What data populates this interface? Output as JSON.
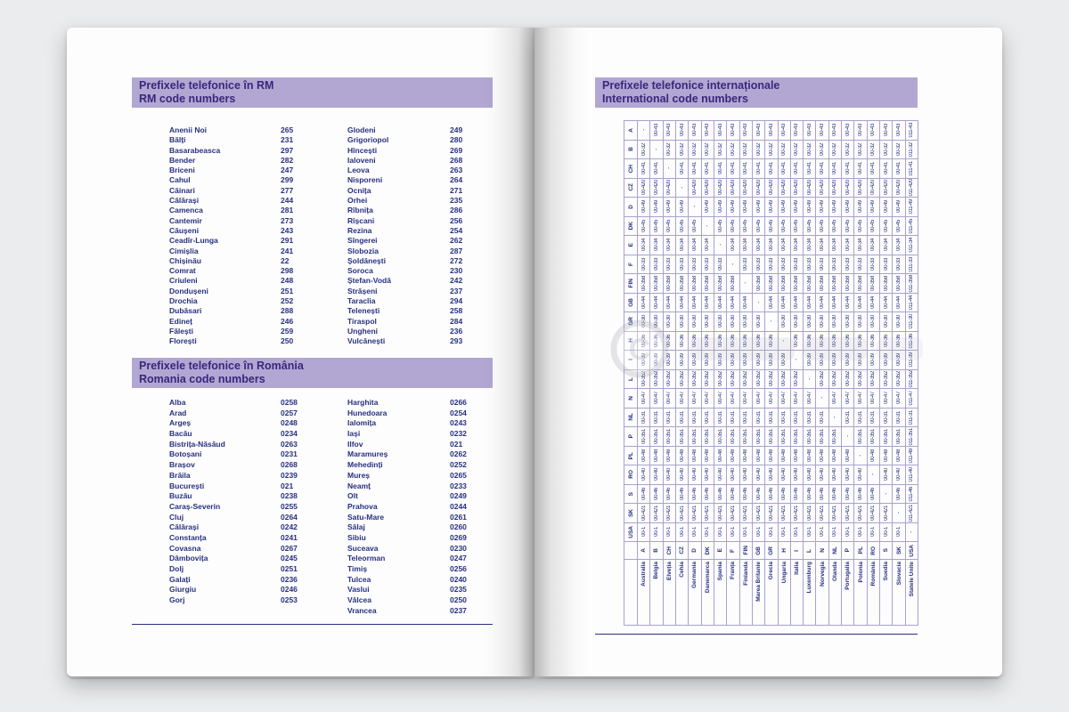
{
  "left_page": {
    "banner_rm": {
      "line1": "Prefixele telefonice în RM",
      "line2": "RM code numbers"
    },
    "rm_codes": {
      "col1": [
        [
          "Anenii Noi",
          "265"
        ],
        [
          "Bălți",
          "231"
        ],
        [
          "Basarabeasca",
          "297"
        ],
        [
          "Bender",
          "282"
        ],
        [
          "Briceni",
          "247"
        ],
        [
          "Cahul",
          "299"
        ],
        [
          "Căinari",
          "277"
        ],
        [
          "Călărași",
          "244"
        ],
        [
          "Camenca",
          "281"
        ],
        [
          "Cantemir",
          "273"
        ],
        [
          "Căușeni",
          "243"
        ],
        [
          "Ceadîr-Lunga",
          "291"
        ],
        [
          "Cimișlia",
          "241"
        ],
        [
          "Chișinău",
          "22"
        ],
        [
          "Comrat",
          "298"
        ],
        [
          "Criuleni",
          "248"
        ],
        [
          "Dondușeni",
          "251"
        ],
        [
          "Drochia",
          "252"
        ],
        [
          "Dubăsari",
          "288"
        ],
        [
          "Edineț",
          "246"
        ],
        [
          "Fălești",
          "259"
        ],
        [
          "Florești",
          "250"
        ]
      ],
      "col2": [
        [
          "Glodeni",
          "249"
        ],
        [
          "Grigoriopol",
          "280"
        ],
        [
          "Hîncești",
          "269"
        ],
        [
          "Ialoveni",
          "268"
        ],
        [
          "Leova",
          "263"
        ],
        [
          "Nisporeni",
          "264"
        ],
        [
          "Ocnița",
          "271"
        ],
        [
          "Orhei",
          "235"
        ],
        [
          "Rîbnița",
          "286"
        ],
        [
          "Rîșcani",
          "256"
        ],
        [
          "Rezina",
          "254"
        ],
        [
          "Sîngerei",
          "262"
        ],
        [
          "Slobozia",
          "287"
        ],
        [
          "Șoldănești",
          "272"
        ],
        [
          "Soroca",
          "230"
        ],
        [
          "Ștefan-Vodă",
          "242"
        ],
        [
          "Strășeni",
          "237"
        ],
        [
          "Taraclia",
          "294"
        ],
        [
          "Telenești",
          "258"
        ],
        [
          "Tiraspol",
          "284"
        ],
        [
          "Ungheni",
          "236"
        ],
        [
          "Vulcănești",
          "293"
        ]
      ]
    },
    "banner_ro": {
      "line1": "Prefixele telefonice în România",
      "line2": "Romania code numbers"
    },
    "ro_codes": {
      "col1": [
        [
          "Alba",
          "0258"
        ],
        [
          "Arad",
          "0257"
        ],
        [
          "Argeș",
          "0248"
        ],
        [
          "Bacău",
          "0234"
        ],
        [
          "Bistrița-Năsăud",
          "0263"
        ],
        [
          "Botoșani",
          "0231"
        ],
        [
          "Brașov",
          "0268"
        ],
        [
          "Brăila",
          "0239"
        ],
        [
          "București",
          "021"
        ],
        [
          "Buzău",
          "0238"
        ],
        [
          "Caraș-Severin",
          "0255"
        ],
        [
          "Cluj",
          "0264"
        ],
        [
          "Călărași",
          "0242"
        ],
        [
          "Constanța",
          "0241"
        ],
        [
          "Covasna",
          "0267"
        ],
        [
          "Dâmbovița",
          "0245"
        ],
        [
          "Dolj",
          "0251"
        ],
        [
          "Galați",
          "0236"
        ],
        [
          "Giurgiu",
          "0246"
        ],
        [
          "Gorj",
          "0253"
        ]
      ],
      "col2": [
        [
          "Harghita",
          "0266"
        ],
        [
          "Hunedoara",
          "0254"
        ],
        [
          "Ialomița",
          "0243"
        ],
        [
          "Iași",
          "0232"
        ],
        [
          "Ilfov",
          "021"
        ],
        [
          "Maramureș",
          "0262"
        ],
        [
          "Mehedinți",
          "0252"
        ],
        [
          "Mureș",
          "0265"
        ],
        [
          "Neamț",
          "0233"
        ],
        [
          "Olt",
          "0249"
        ],
        [
          "Prahova",
          "0244"
        ],
        [
          "Satu-Mare",
          "0261"
        ],
        [
          "Sălaj",
          "0260"
        ],
        [
          "Sibiu",
          "0269"
        ],
        [
          "Suceava",
          "0230"
        ],
        [
          "Teleorman",
          "0247"
        ],
        [
          "Timiș",
          "0256"
        ],
        [
          "Tulcea",
          "0240"
        ],
        [
          "Vaslui",
          "0235"
        ],
        [
          "Vâlcea",
          "0250"
        ],
        [
          "Vrancea",
          "0237"
        ]
      ]
    }
  },
  "right_page": {
    "banner_intl": {
      "line1": "Prefixele telefonice internaționale",
      "line2": "International code numbers"
    },
    "table": {
      "self_cell": "-",
      "separator": "-",
      "countries": [
        {
          "abbr": "A",
          "name": "Australia",
          "code": "43",
          "exit": "00"
        },
        {
          "abbr": "B",
          "name": "Belgia",
          "code": "32",
          "exit": "00"
        },
        {
          "abbr": "CH",
          "name": "Elveția",
          "code": "41",
          "exit": "00"
        },
        {
          "abbr": "CZ",
          "name": "Cehia",
          "code": "420",
          "exit": "00"
        },
        {
          "abbr": "D",
          "name": "Germania",
          "code": "49",
          "exit": "00"
        },
        {
          "abbr": "DK",
          "name": "Danemarca",
          "code": "45",
          "exit": "00"
        },
        {
          "abbr": "E",
          "name": "Spania",
          "code": "34",
          "exit": "00"
        },
        {
          "abbr": "F",
          "name": "Franța",
          "code": "33",
          "exit": "00"
        },
        {
          "abbr": "FIN",
          "name": "Finlanda",
          "code": "358",
          "exit": "00"
        },
        {
          "abbr": "GB",
          "name": "Marea Britanie",
          "code": "44",
          "exit": "00"
        },
        {
          "abbr": "GR",
          "name": "Grecia",
          "code": "30",
          "exit": "00"
        },
        {
          "abbr": "H",
          "name": "Ungaria",
          "code": "36",
          "exit": "00"
        },
        {
          "abbr": "I",
          "name": "Italia",
          "code": "39",
          "exit": "00"
        },
        {
          "abbr": "L",
          "name": "Luxemburg",
          "code": "352",
          "exit": "00"
        },
        {
          "abbr": "N",
          "name": "Norvegia",
          "code": "47",
          "exit": "00"
        },
        {
          "abbr": "NL",
          "name": "Olanda",
          "code": "31",
          "exit": "00"
        },
        {
          "abbr": "P",
          "name": "Portugalia",
          "code": "351",
          "exit": "00"
        },
        {
          "abbr": "PL",
          "name": "Polonia",
          "code": "48",
          "exit": "00"
        },
        {
          "abbr": "RO",
          "name": "România",
          "code": "40",
          "exit": "00"
        },
        {
          "abbr": "S",
          "name": "Suedia",
          "code": "46",
          "exit": "00"
        },
        {
          "abbr": "SK",
          "name": "Slovacia",
          "code": "421",
          "exit": "00"
        },
        {
          "abbr": "USA",
          "name": "Statele Unite",
          "code": "1",
          "exit": "011"
        }
      ]
    }
  }
}
